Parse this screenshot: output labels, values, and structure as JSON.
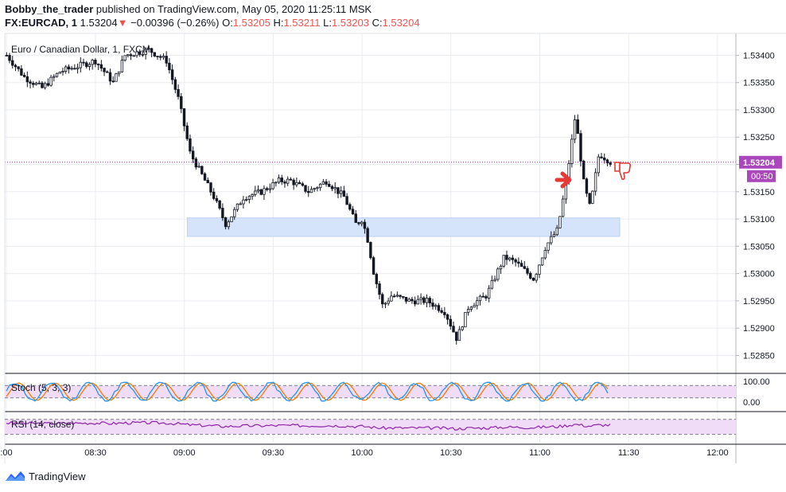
{
  "header": {
    "author": "Bobby_the_trader",
    "published_text": "published on TradingView.com, May 05, 2020 11:25:11 MSK",
    "symbol": "FX:EURCAD, 1",
    "last": "1.53204",
    "change_arrow": "▼",
    "change": "−0.00396 (−0.26%)",
    "o_label": "O:",
    "o": "1.53205",
    "h_label": "H:",
    "h": "1.53211",
    "l_label": "L:",
    "l": "1.53203",
    "c_label": "C:",
    "c": "1.53204"
  },
  "pane_title": "Euro / Canadian Dollar, 1, FXCM",
  "price_label": "1.53204",
  "countdown_label": "00:50",
  "stoch_label": "Stoch (5, 3, 3)",
  "rsi_label": "RSI (14, close)",
  "footer": {
    "brand": "TradingView"
  },
  "colors": {
    "up_candle": "#ffffff",
    "down_candle": "#131722",
    "zone": "#d6e4fb",
    "price_line": "#9c27b0",
    "price_badge": "#ab47bc",
    "stoch_k": "#2196f3",
    "stoch_d": "#f57c00",
    "osc_band": "#f1dcf8",
    "rsi_line": "#8e24aa",
    "annotation": "#e53935"
  },
  "chart_data": {
    "type": "candlestick",
    "x_ticks": [
      ":00",
      "08:30",
      "09:00",
      "09:30",
      "10:00",
      "10:30",
      "11:00",
      "11:30",
      "12:00"
    ],
    "y_ticks": [
      "1.53400",
      "1.53350",
      "1.53300",
      "1.53250",
      "1.53200",
      "1.53150",
      "1.53100",
      "1.53050",
      "1.53000",
      "1.52950",
      "1.52900",
      "1.52850"
    ],
    "ylim": [
      1.5282,
      1.5344
    ],
    "current_price": 1.53204,
    "support_zone": {
      "from_time": "09:01",
      "to_time": "11:27",
      "low": 1.53068,
      "high": 1.53102
    },
    "stoch_ticks": [
      "100.00",
      "0.00"
    ],
    "stoch_levels": [
      80,
      20
    ],
    "rsi_levels": [
      70,
      30
    ],
    "series_path": [
      {
        "t": "08:00",
        "p": 1.534
      },
      {
        "t": "08:06",
        "p": 1.5336
      },
      {
        "t": "08:12",
        "p": 1.5334
      },
      {
        "t": "08:18",
        "p": 1.5337
      },
      {
        "t": "08:24",
        "p": 1.5338
      },
      {
        "t": "08:30",
        "p": 1.5339
      },
      {
        "t": "08:36",
        "p": 1.5335
      },
      {
        "t": "08:40",
        "p": 1.534
      },
      {
        "t": "08:48",
        "p": 1.5341
      },
      {
        "t": "08:54",
        "p": 1.5339
      },
      {
        "t": "08:58",
        "p": 1.5332
      },
      {
        "t": "09:02",
        "p": 1.5322
      },
      {
        "t": "09:05",
        "p": 1.5319
      },
      {
        "t": "09:10",
        "p": 1.5314
      },
      {
        "t": "09:14",
        "p": 1.5309
      },
      {
        "t": "09:20",
        "p": 1.5314
      },
      {
        "t": "09:26",
        "p": 1.5315
      },
      {
        "t": "09:32",
        "p": 1.5317
      },
      {
        "t": "09:36",
        "p": 1.5317
      },
      {
        "t": "09:42",
        "p": 1.5315
      },
      {
        "t": "09:48",
        "p": 1.5317
      },
      {
        "t": "09:54",
        "p": 1.5314
      },
      {
        "t": "09:58",
        "p": 1.5309
      },
      {
        "t": "10:00",
        "p": 1.531
      },
      {
        "t": "10:02",
        "p": 1.5306
      },
      {
        "t": "10:04",
        "p": 1.53
      },
      {
        "t": "10:07",
        "p": 1.5294
      },
      {
        "t": "10:10",
        "p": 1.5296
      },
      {
        "t": "10:16",
        "p": 1.5295
      },
      {
        "t": "10:22",
        "p": 1.5295
      },
      {
        "t": "10:28",
        "p": 1.5293
      },
      {
        "t": "10:32",
        "p": 1.5288
      },
      {
        "t": "10:36",
        "p": 1.5294
      },
      {
        "t": "10:42",
        "p": 1.5296
      },
      {
        "t": "10:48",
        "p": 1.5303
      },
      {
        "t": "10:52",
        "p": 1.5302
      },
      {
        "t": "10:58",
        "p": 1.5299
      },
      {
        "t": "11:02",
        "p": 1.5305
      },
      {
        "t": "11:06",
        "p": 1.5308
      },
      {
        "t": "11:09",
        "p": 1.5317
      },
      {
        "t": "11:12",
        "p": 1.5329
      },
      {
        "t": "11:15",
        "p": 1.5316
      },
      {
        "t": "11:17",
        "p": 1.5312
      },
      {
        "t": "11:20",
        "p": 1.5322
      },
      {
        "t": "11:24",
        "p": 1.53204
      }
    ]
  }
}
